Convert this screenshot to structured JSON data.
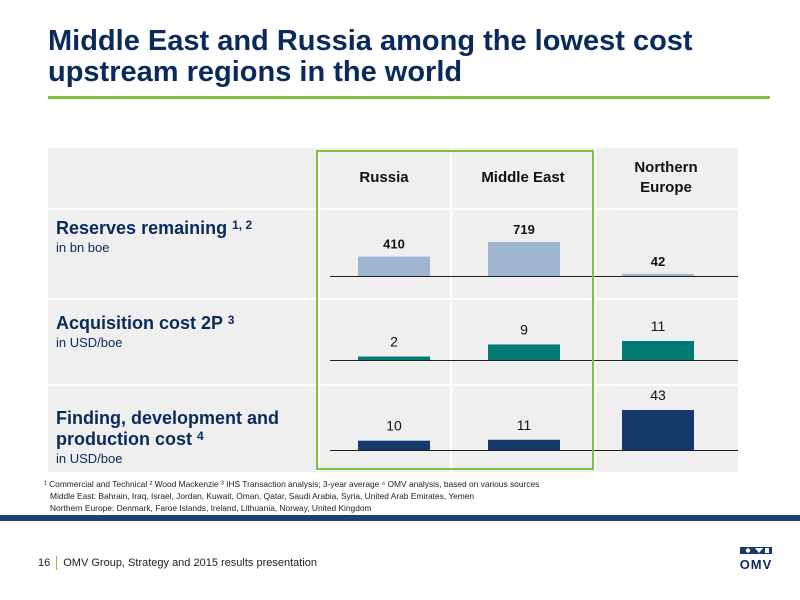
{
  "slide": {
    "title": "Middle East and Russia among the lowest cost upstream regions in the world",
    "page_number": "16",
    "footer_text": "OMV Group, Strategy and 2015 results presentation",
    "logo_text": "OMV"
  },
  "footnotes": {
    "line1": "¹ Commercial and Technical  ² Wood Mackenzie  ³ IHS Transaction analysis; 3-year average   ⁴ OMV analysis, based on various sources",
    "line2": "Middle East: Bahrain, Iraq, Israel, Jordan, Kuwait, Oman, Qatar, Saudi Arabia, Syria, United Arab Emirates, Yemen",
    "line3": "Northern Europe: Denmark, Faroe Islands, Ireland, Lithuania, Norway, United Kingdom"
  },
  "colors": {
    "title": "#0a2a5c",
    "accent_green": "#7dc242",
    "reserves_bar": "#9fb4cf",
    "acquisition_bar": "#007a72",
    "finding_bar": "#163a6b",
    "band": "#efeff0"
  },
  "chart_data": {
    "type": "table",
    "columns": [
      "Russia",
      "Middle East",
      "Northern Europe"
    ],
    "rows": [
      {
        "title": "Reserves remaining",
        "superscript": "1, 2",
        "unit": "in bn boe",
        "values": [
          410,
          719,
          42
        ]
      },
      {
        "title": "Acquisition cost 2P",
        "superscript": "3",
        "unit": "in USD/boe",
        "values": [
          2,
          9,
          11
        ]
      },
      {
        "title": "Finding, development and production cost",
        "superscript": "4",
        "unit": "in USD/boe",
        "values": [
          10,
          11,
          43
        ]
      }
    ]
  }
}
